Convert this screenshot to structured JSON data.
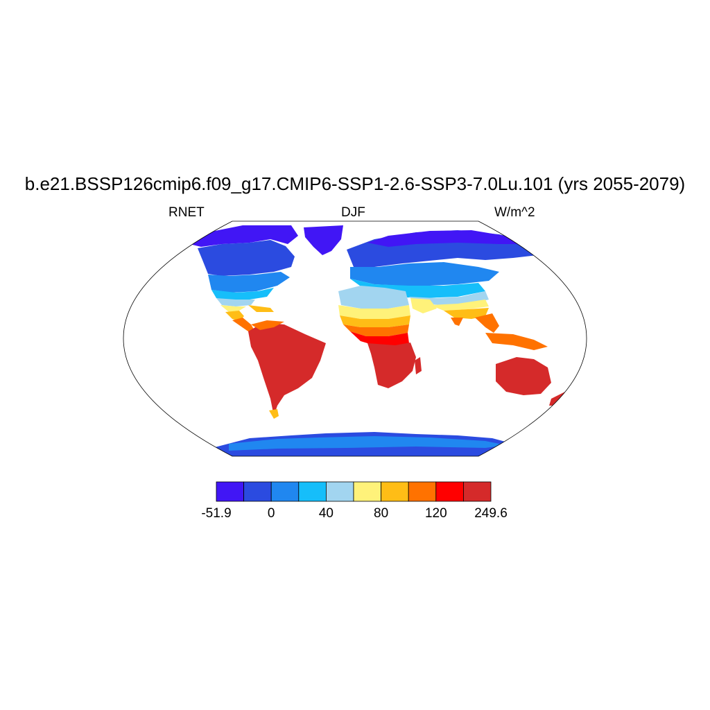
{
  "title": "b.e21.BSSP126cmip6.f09_g17.CMIP6-SSP1-2.6-SSP3-7.0Lu.101 (yrs 2055-2079)",
  "left_label": "RNET",
  "center_label": "DJF",
  "right_label": "W/m^2",
  "colorbar": {
    "colors": [
      "#4116f5",
      "#2b4be0",
      "#2087f0",
      "#16befa",
      "#a2d5f0",
      "#fff27a",
      "#ffbd16",
      "#ff7200",
      "#ff0000",
      "#d52a2a"
    ],
    "labels": [
      "-51.9",
      "0",
      "40",
      "80",
      "120",
      "249.6"
    ]
  },
  "colors": {
    "frame": "#000000",
    "ocean": "#ffffff"
  }
}
